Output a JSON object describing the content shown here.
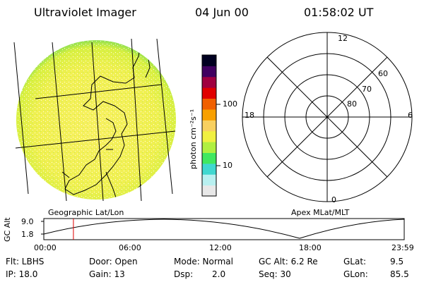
{
  "header": {
    "instrument": "Ultraviolet Imager",
    "date": "04 Jun 00",
    "time": "01:58:02 UT"
  },
  "colorbar": {
    "unit_label": "photon cm⁻²s⁻¹",
    "tick_100": "100",
    "tick_10": "10",
    "colors": [
      "#e8e8e8",
      "#b8f0f0",
      "#40d8d0",
      "#40e860",
      "#b0f040",
      "#f0f040",
      "#f8d060",
      "#f8a000",
      "#f06000",
      "#e00000",
      "#a00040",
      "#400060",
      "#000020"
    ]
  },
  "left_panel": {
    "caption": "Geographic Lat/Lon"
  },
  "polar_plot": {
    "caption": "Apex MLat/MLT",
    "mlt_labels": {
      "top": "12",
      "bottom": "0",
      "left": "18",
      "right": "6"
    },
    "lat_labels": [
      "60",
      "70",
      "80"
    ]
  },
  "timeline": {
    "ylabel": "GC Alt",
    "y_top": "9.0",
    "y_bottom": "1.8",
    "time_labels": [
      "00:00",
      "06:00",
      "12:00",
      "18:00",
      "23:59"
    ],
    "current_time_hours": 1.97
  },
  "info": {
    "flt": "Flt: LBHS",
    "ip": "IP: 18.0",
    "door": "Door: Open",
    "gain": "Gain: 13",
    "mode": "Mode: Normal",
    "dsp_label": "Dsp:",
    "dsp_value": "2.0",
    "gcalt": "GC Alt: 6.2 Re",
    "seq": "Seq: 30",
    "glat_label": "GLat:",
    "glat_value": "9.5",
    "glon_label": "GLon:",
    "glon_value": "85.5"
  }
}
